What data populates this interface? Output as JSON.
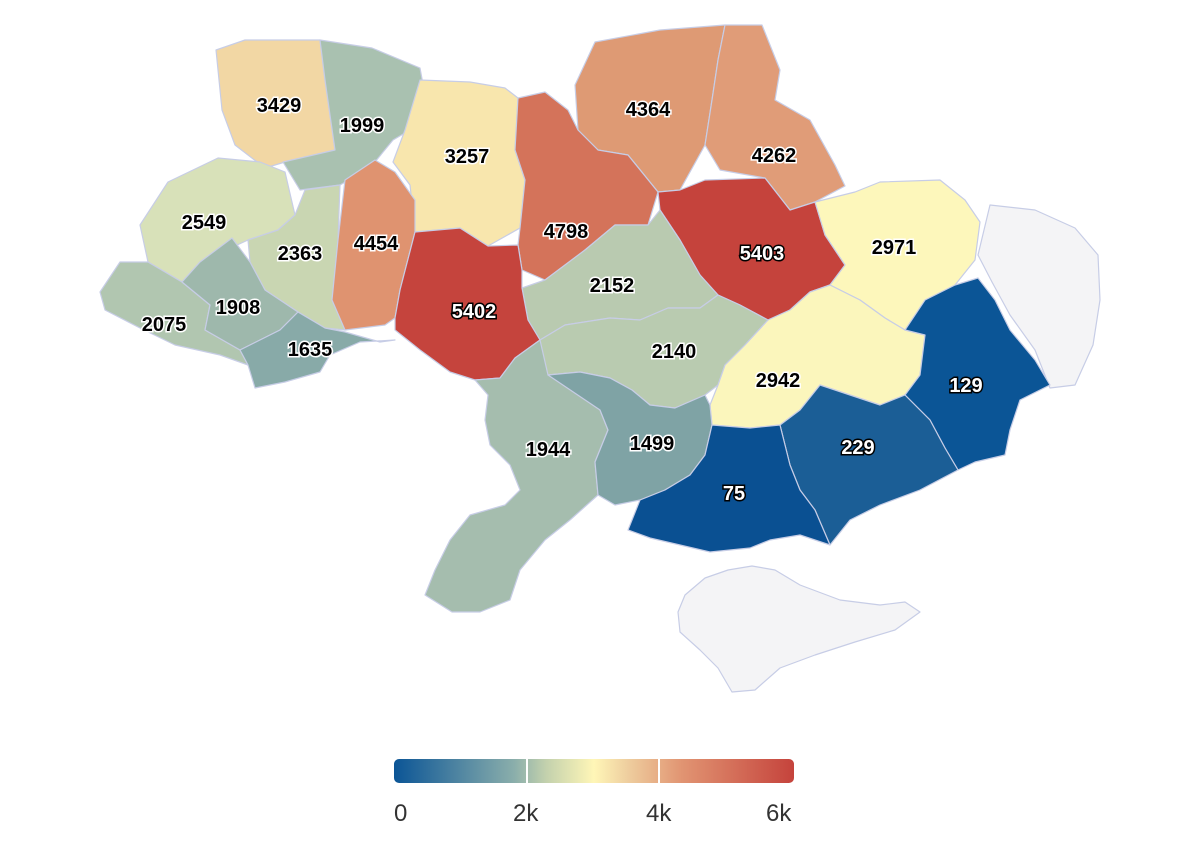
{
  "regions": [
    {
      "value": "3429",
      "color": "#f2d7a4"
    },
    {
      "value": "1999",
      "color": "#a9c1b0"
    },
    {
      "value": "3257",
      "color": "#f8e6ad"
    },
    {
      "value": "4364",
      "color": "#de9a74"
    },
    {
      "value": "4262",
      "color": "#e09c78"
    },
    {
      "value": "2549",
      "color": "#d8e1b9"
    },
    {
      "value": "2363",
      "color": "#c9d6b2"
    },
    {
      "value": "4454",
      "color": "#df9370"
    },
    {
      "value": "4798",
      "color": "#d4735a"
    },
    {
      "value": "5403",
      "color": "#c5433c"
    },
    {
      "value": "2971",
      "color": "#fdf7bb"
    },
    {
      "value": "2152",
      "color": "#b9cab0"
    },
    {
      "value": "2075",
      "color": "#b1c6b0"
    },
    {
      "value": "1908",
      "color": "#9eb8ac"
    },
    {
      "value": "1635",
      "color": "#88aaa8"
    },
    {
      "value": "5402",
      "color": "#c5443d"
    },
    {
      "value": "2140",
      "color": "#b9cbb0"
    },
    {
      "value": "2942",
      "color": "#fbf6bc"
    },
    {
      "value": "129",
      "color": "#0b5596"
    },
    {
      "value": "1944",
      "color": "#a5bdae"
    },
    {
      "value": "1499",
      "color": "#7fa3a5"
    },
    {
      "value": "229",
      "color": "#1b5e96"
    },
    {
      "value": "75",
      "color": "#0a5092"
    }
  ],
  "legend": {
    "ticks": [
      "0",
      "2k",
      "4k",
      "6k"
    ],
    "min": 0,
    "max": 6000
  }
}
